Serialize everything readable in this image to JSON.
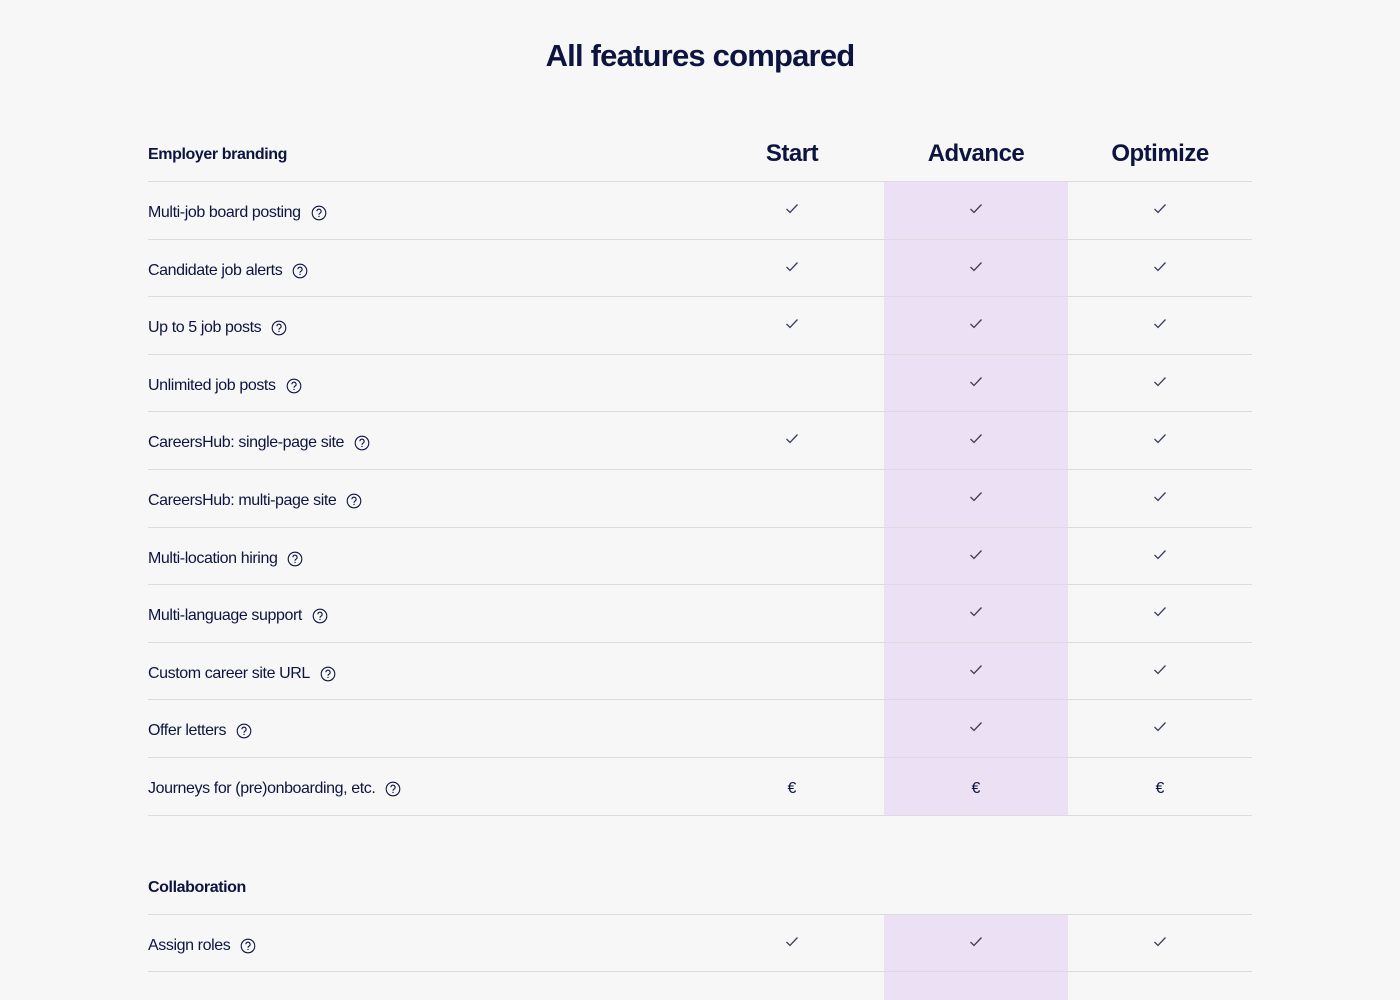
{
  "title": "All features compared",
  "plans": [
    "Start",
    "Advance",
    "Optimize"
  ],
  "sections": [
    {
      "name": "Employer branding",
      "rows": [
        {
          "label": "Multi-job board posting",
          "cells": [
            true,
            true,
            true
          ]
        },
        {
          "label": "Candidate job alerts",
          "cells": [
            true,
            true,
            true
          ]
        },
        {
          "label": "Up to 5 job posts",
          "cells": [
            true,
            true,
            true
          ]
        },
        {
          "label": "Unlimited job posts",
          "cells": [
            false,
            true,
            true
          ]
        },
        {
          "label": "CareersHub: single-page site",
          "cells": [
            true,
            true,
            true
          ]
        },
        {
          "label": "CareersHub: multi-page site",
          "cells": [
            false,
            true,
            true
          ]
        },
        {
          "label": "Multi-location hiring",
          "cells": [
            false,
            true,
            true
          ]
        },
        {
          "label": "Multi-language support",
          "cells": [
            false,
            true,
            true
          ]
        },
        {
          "label": "Custom career site URL",
          "cells": [
            false,
            true,
            true
          ]
        },
        {
          "label": "Offer letters",
          "cells": [
            false,
            true,
            true
          ]
        },
        {
          "label": "Journeys for (pre)onboarding, etc.",
          "cells": [
            "€",
            "€",
            "€"
          ]
        }
      ]
    },
    {
      "name": "Collaboration",
      "rows": [
        {
          "label": "Assign roles",
          "cells": [
            true,
            true,
            true
          ]
        }
      ]
    }
  ]
}
